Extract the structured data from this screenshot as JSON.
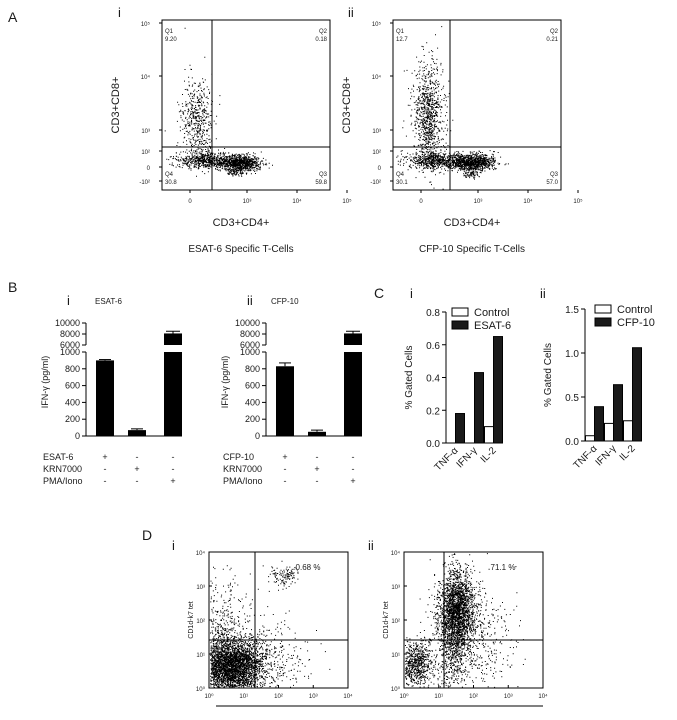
{
  "panel_labels": {
    "A": "A",
    "B": "B",
    "C": "C",
    "D": "D"
  },
  "subpanel_labels": {
    "Ai": "i",
    "Aii": "ii",
    "Bi": "i",
    "Bii": "ii",
    "Ci": "i",
    "Cii": "ii",
    "Di": "i",
    "Dii": "ii"
  },
  "chart_data": [
    {
      "id": "A_i",
      "type": "scatter",
      "title": "ESAT-6 Specific T-Cells",
      "xlabel": "CD3+CD4+",
      "ylabel": "CD3+CD8+",
      "xticks": [
        "0",
        "10³",
        "10⁴",
        "10⁵"
      ],
      "yticks": [
        "10⁵",
        "10⁴",
        "10³",
        "10²",
        "0",
        "-10²"
      ],
      "quadrants": [
        {
          "name": "Q1",
          "value": "9.20"
        },
        {
          "name": "Q2",
          "value": "0.18"
        },
        {
          "name": "Q3",
          "value": "59.8"
        },
        {
          "name": "Q4",
          "value": "30.8"
        }
      ]
    },
    {
      "id": "A_ii",
      "type": "scatter",
      "title": "CFP-10 Specific T-Cells",
      "xlabel": "CD3+CD4+",
      "ylabel": "CD3+CD8+",
      "xticks": [
        "0",
        "10³",
        "10⁴",
        "10⁵"
      ],
      "yticks": [
        "10⁵",
        "10⁴",
        "10³",
        "10²",
        "0",
        "-10²"
      ],
      "quadrants": [
        {
          "name": "Q1",
          "value": "12.7"
        },
        {
          "name": "Q2",
          "value": "0.21"
        },
        {
          "name": "Q3",
          "value": "57.0"
        },
        {
          "name": "Q4",
          "value": "30.1"
        }
      ]
    },
    {
      "id": "B_i",
      "type": "bar",
      "title": "ESAT-6",
      "ylabel": "IFN-γ (pg/ml)",
      "yticks_lower": [
        "0",
        "200",
        "400",
        "600",
        "800",
        "1000"
      ],
      "yticks_upper": [
        "6000",
        "8000",
        "10000"
      ],
      "values": [
        900,
        70,
        8100
      ],
      "errors": [
        10,
        15,
        400
      ],
      "conditions": [
        {
          "label": "ESAT-6",
          "signs": [
            "+",
            "-",
            "-"
          ]
        },
        {
          "label": "KRN7000",
          "signs": [
            "-",
            "+",
            "-"
          ]
        },
        {
          "label": "PMA/Iono",
          "signs": [
            "-",
            "-",
            "+"
          ]
        }
      ]
    },
    {
      "id": "B_ii",
      "type": "bar",
      "title": "CFP-10",
      "ylabel": "IFN-γ (pg/ml)",
      "yticks_lower": [
        "0",
        "200",
        "400",
        "600",
        "800",
        "1000"
      ],
      "yticks_upper": [
        "6000",
        "8000",
        "10000"
      ],
      "values": [
        830,
        50,
        8100
      ],
      "errors": [
        40,
        20,
        400
      ],
      "conditions": [
        {
          "label": "CFP-10",
          "signs": [
            "+",
            "-",
            "-"
          ]
        },
        {
          "label": "KRN7000",
          "signs": [
            "-",
            "+",
            "-"
          ]
        },
        {
          "label": "PMA/Iono",
          "signs": [
            "-",
            "-",
            "+"
          ]
        }
      ]
    },
    {
      "id": "C_i",
      "type": "bar",
      "ylabel": "% Gated Cells",
      "categories": [
        "TNF-α",
        "IFN-γ",
        "IL-2"
      ],
      "ylim": [
        0,
        0.8
      ],
      "yticks": [
        "0.0",
        "0.2",
        "0.4",
        "0.6",
        "0.8"
      ],
      "series": [
        {
          "name": "Control",
          "values": [
            0,
            0,
            0.1
          ],
          "color": "#ffffff"
        },
        {
          "name": "ESAT-6",
          "values": [
            0.18,
            0.43,
            0.65
          ],
          "color": "#1a1a1a"
        }
      ]
    },
    {
      "id": "C_ii",
      "type": "bar",
      "ylabel": "% Gated Cells",
      "categories": [
        "TNF-α",
        "IFN-γ",
        "IL-2"
      ],
      "ylim": [
        0,
        1.5
      ],
      "yticks": [
        "0.0",
        "0.5",
        "1.0",
        "1.5"
      ],
      "series": [
        {
          "name": "Control",
          "values": [
            0.06,
            0.2,
            0.23
          ],
          "color": "#ffffff"
        },
        {
          "name": "CFP-10",
          "values": [
            0.39,
            0.64,
            1.06
          ],
          "color": "#1a1a1a"
        }
      ]
    },
    {
      "id": "D_i",
      "type": "scatter",
      "ylabel": "CD1d-k7 tet",
      "xticks": [
        "10⁰",
        "10¹",
        "10²",
        "10³",
        "10⁴"
      ],
      "yticks": [
        "10⁴",
        "10³",
        "10²",
        "10¹",
        "10⁰"
      ],
      "percent": "0.68 %"
    },
    {
      "id": "D_ii",
      "type": "scatter",
      "ylabel": "CD1d-k7 tet",
      "xticks": [
        "10⁰",
        "10¹",
        "10²",
        "10³",
        "10⁴"
      ],
      "yticks": [
        "10⁴",
        "10³",
        "10²",
        "10¹",
        "10⁰"
      ],
      "percent": "71.1 %"
    }
  ]
}
